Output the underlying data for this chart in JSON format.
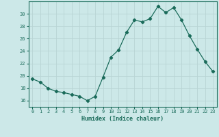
{
  "x": [
    0,
    1,
    2,
    3,
    4,
    5,
    6,
    7,
    8,
    9,
    10,
    11,
    12,
    13,
    14,
    15,
    16,
    17,
    18,
    19,
    20,
    21,
    22,
    23
  ],
  "y": [
    19.5,
    19.0,
    18.0,
    17.5,
    17.3,
    17.0,
    16.7,
    16.0,
    16.7,
    19.8,
    23.0,
    24.2,
    27.0,
    29.0,
    28.7,
    29.2,
    31.2,
    30.2,
    31.0,
    29.0,
    26.5,
    24.3,
    22.3,
    20.7
  ],
  "line_color": "#1a6b5a",
  "marker": "D",
  "marker_size": 2.2,
  "bg_color": "#cce8e8",
  "grid_color": "#b8d4d4",
  "tick_color": "#1a6b5a",
  "label_color": "#1a6b5a",
  "xlabel": "Humidex (Indice chaleur)",
  "ylim": [
    15,
    32
  ],
  "xlim": [
    -0.5,
    23.5
  ],
  "yticks": [
    16,
    18,
    20,
    22,
    24,
    26,
    28,
    30
  ],
  "xticks": [
    0,
    1,
    2,
    3,
    4,
    5,
    6,
    7,
    8,
    9,
    10,
    11,
    12,
    13,
    14,
    15,
    16,
    17,
    18,
    19,
    20,
    21,
    22,
    23
  ]
}
